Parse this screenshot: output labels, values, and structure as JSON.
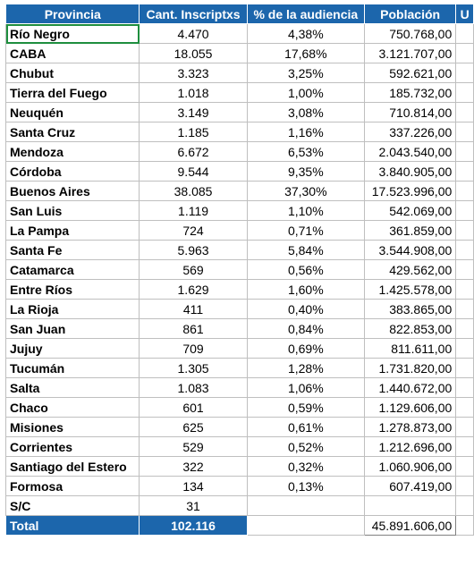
{
  "headers": [
    "Provincia",
    "Cant. Inscriptxs",
    "% de la audiencia",
    "Población",
    "U"
  ],
  "rows": [
    {
      "provincia": "Río Negro",
      "cant": "4.470",
      "pct": "4,38%",
      "poblacion": "750.768,00"
    },
    {
      "provincia": "CABA",
      "cant": "18.055",
      "pct": "17,68%",
      "poblacion": "3.121.707,00"
    },
    {
      "provincia": "Chubut",
      "cant": "3.323",
      "pct": "3,25%",
      "poblacion": "592.621,00"
    },
    {
      "provincia": "Tierra del Fuego",
      "cant": "1.018",
      "pct": "1,00%",
      "poblacion": "185.732,00"
    },
    {
      "provincia": "Neuquén",
      "cant": "3.149",
      "pct": "3,08%",
      "poblacion": "710.814,00"
    },
    {
      "provincia": "Santa Cruz",
      "cant": "1.185",
      "pct": "1,16%",
      "poblacion": "337.226,00"
    },
    {
      "provincia": "Mendoza",
      "cant": "6.672",
      "pct": "6,53%",
      "poblacion": "2.043.540,00"
    },
    {
      "provincia": "Córdoba",
      "cant": "9.544",
      "pct": "9,35%",
      "poblacion": "3.840.905,00"
    },
    {
      "provincia": "Buenos Aires",
      "cant": "38.085",
      "pct": "37,30%",
      "poblacion": "17.523.996,00"
    },
    {
      "provincia": "San Luis",
      "cant": "1.119",
      "pct": "1,10%",
      "poblacion": "542.069,00"
    },
    {
      "provincia": "La Pampa",
      "cant": "724",
      "pct": "0,71%",
      "poblacion": "361.859,00"
    },
    {
      "provincia": "Santa Fe",
      "cant": "5.963",
      "pct": "5,84%",
      "poblacion": "3.544.908,00"
    },
    {
      "provincia": "Catamarca",
      "cant": "569",
      "pct": "0,56%",
      "poblacion": "429.562,00"
    },
    {
      "provincia": "Entre Ríos",
      "cant": "1.629",
      "pct": "1,60%",
      "poblacion": "1.425.578,00"
    },
    {
      "provincia": "La Rioja",
      "cant": "411",
      "pct": "0,40%",
      "poblacion": "383.865,00"
    },
    {
      "provincia": "San Juan",
      "cant": "861",
      "pct": "0,84%",
      "poblacion": "822.853,00"
    },
    {
      "provincia": "Jujuy",
      "cant": "709",
      "pct": "0,69%",
      "poblacion": "811.611,00"
    },
    {
      "provincia": "Tucumán",
      "cant": "1.305",
      "pct": "1,28%",
      "poblacion": "1.731.820,00"
    },
    {
      "provincia": "Salta",
      "cant": "1.083",
      "pct": "1,06%",
      "poblacion": "1.440.672,00"
    },
    {
      "provincia": "Chaco",
      "cant": "601",
      "pct": "0,59%",
      "poblacion": "1.129.606,00"
    },
    {
      "provincia": "Misiones",
      "cant": "625",
      "pct": "0,61%",
      "poblacion": "1.278.873,00"
    },
    {
      "provincia": "Corrientes",
      "cant": "529",
      "pct": "0,52%",
      "poblacion": "1.212.696,00"
    },
    {
      "provincia": "Santiago del Estero",
      "cant": "322",
      "pct": "0,32%",
      "poblacion": "1.060.906,00"
    },
    {
      "provincia": "Formosa",
      "cant": "134",
      "pct": "0,13%",
      "poblacion": "607.419,00"
    },
    {
      "provincia": "S/C",
      "cant": "31",
      "pct": "",
      "poblacion": ""
    }
  ],
  "total": {
    "label": "Total",
    "cant": "102.116",
    "poblacion": "45.891.606,00"
  },
  "colors": {
    "header_bg": "#1c66ac",
    "header_text": "#ffffff",
    "selection": "#1e8e3e"
  }
}
